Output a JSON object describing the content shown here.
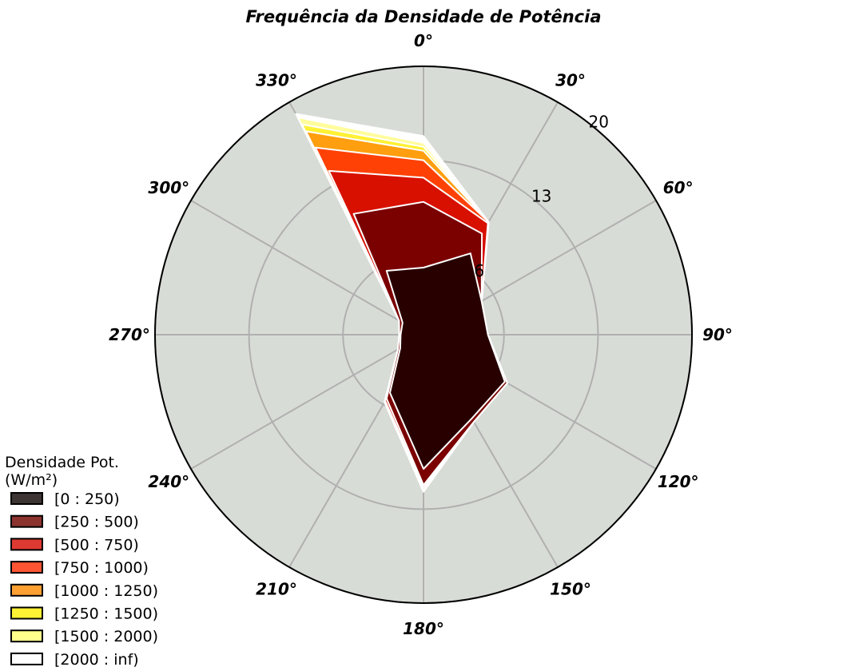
{
  "chart_data": {
    "type": "polar-stacked-area",
    "title": "Frequência da Densidade de Potência",
    "directions": [
      0,
      30,
      60,
      90,
      120,
      150,
      180,
      210,
      240,
      270,
      300,
      330
    ],
    "direction_labels": [
      "0°",
      "30°",
      "60°",
      "90°",
      "120°",
      "150°",
      "180°",
      "210°",
      "240°",
      "270°",
      "300°",
      "330°"
    ],
    "r_ticks": [
      6,
      13,
      20
    ],
    "r_tick_labels": [
      "6",
      "13",
      "20"
    ],
    "r_max": 20,
    "legend_title": "Densidade Pot.\n(W/m²)",
    "series": [
      {
        "name": "[0 : 250)",
        "color": "#280000",
        "legend_color": "#3d3533",
        "values": [
          5.0,
          7.0,
          5.0,
          4.8,
          7.0,
          7.2,
          10.0,
          5.0,
          2.0,
          1.7,
          1.8,
          5.5
        ]
      },
      {
        "name": "[250 : 500)",
        "color": "#7b0000",
        "legend_color": "#8c3330",
        "values": [
          4.9,
          1.7,
          0,
          0,
          0.2,
          0.3,
          1.2,
          0.5,
          0.2,
          0.1,
          0.3,
          4.9
        ]
      },
      {
        "name": "[500 : 750)",
        "color": "#d81000",
        "legend_color": "#dd3a32",
        "values": [
          1.8,
          0.9,
          0,
          0,
          0,
          0,
          0.2,
          0.2,
          0,
          0,
          0,
          3.7
        ]
      },
      {
        "name": "[750 : 1000)",
        "color": "#ff4106",
        "legend_color": "#ff5533",
        "values": [
          1.3,
          0.1,
          0,
          0,
          0,
          0,
          0.2,
          0.1,
          0,
          0,
          0,
          2.0
        ]
      },
      {
        "name": "[1000 : 1250)",
        "color": "#ff9e0e",
        "legend_color": "#ffa033",
        "values": [
          0.7,
          0,
          0,
          0,
          0,
          0,
          0.1,
          0,
          0,
          0,
          0,
          1.4
        ]
      },
      {
        "name": "[1250 : 1500)",
        "color": "#fff135",
        "legend_color": "#fff133",
        "values": [
          0.3,
          0,
          0,
          0,
          0,
          0,
          0,
          0,
          0,
          0,
          0,
          0.6
        ]
      },
      {
        "name": "[1500 : 2000)",
        "color": "#fffc9c",
        "legend_color": "#ffff8c",
        "values": [
          0.3,
          0,
          0,
          0,
          0,
          0,
          0,
          0,
          0,
          0,
          0,
          0.6
        ]
      },
      {
        "name": "[2000 : inf)",
        "color": "#ffffff",
        "legend_color": "#ffffff",
        "values": [
          0.5,
          0,
          0,
          0,
          0,
          0,
          0,
          0,
          0,
          0,
          0,
          0.3
        ]
      }
    ],
    "background_color": "#d8dcd6",
    "grid": true,
    "legend_position": "lower-left"
  }
}
